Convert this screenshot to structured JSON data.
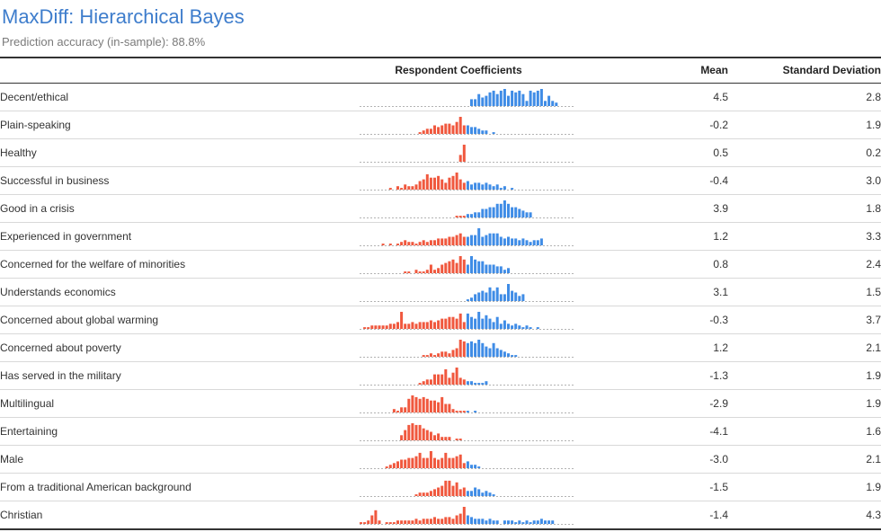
{
  "title": "MaxDiff: Hierarchical Bayes",
  "subtitle": "Prediction accuracy (in-sample): 88.8%",
  "columns": {
    "label": "",
    "coefficients": "Respondent Coefficients",
    "mean": "Mean",
    "sd": "Standard Deviation"
  },
  "colors": {
    "negative": "#f0583e",
    "positive": "#3f8ce6",
    "baseline": "#b3b3b3"
  },
  "chart_data": {
    "type": "table",
    "bins": 60,
    "rows": [
      {
        "label": "Decent/ethical",
        "mean": "4.5",
        "sd": "2.8",
        "hist": [
          0,
          0,
          0,
          0,
          0,
          0,
          0,
          0,
          0,
          0,
          0,
          0,
          0,
          0,
          0,
          0,
          0,
          0,
          0,
          0,
          0,
          0,
          0,
          0,
          0,
          0,
          0,
          0,
          0,
          0,
          0.4,
          0.4,
          0.7,
          0.5,
          0.6,
          0.8,
          0.9,
          0.7,
          0.9,
          1,
          0.6,
          0.9,
          0.8,
          0.9,
          0.7,
          0.3,
          0.9,
          0.8,
          0.9,
          1,
          0.3,
          0.6,
          0.3,
          0.2,
          0,
          0,
          0,
          0,
          0,
          0
        ]
      },
      {
        "label": "Plain-speaking",
        "mean": "-0.2",
        "sd": "1.9",
        "hist": [
          0,
          0,
          0,
          0,
          0,
          0,
          0,
          0,
          0,
          0,
          0,
          0,
          0,
          0,
          0,
          0,
          0.1,
          0.2,
          0.3,
          0.3,
          0.5,
          0.4,
          0.5,
          0.6,
          0.6,
          0.5,
          0.7,
          1,
          0.5,
          0.5,
          0.4,
          0.4,
          0.3,
          0.2,
          0.2,
          0,
          0.1,
          0,
          0,
          0,
          0,
          0,
          0,
          0,
          0,
          0,
          0,
          0,
          0,
          0,
          0,
          0,
          0,
          0,
          0,
          0,
          0,
          0,
          0,
          0
        ]
      },
      {
        "label": "Healthy",
        "mean": "0.5",
        "sd": "0.2",
        "hist": [
          0,
          0,
          0,
          0,
          0,
          0,
          0,
          0,
          0,
          0,
          0,
          0,
          0,
          0,
          0,
          0,
          0,
          0,
          0,
          0,
          0,
          0,
          0,
          0,
          0,
          0,
          0,
          0.4,
          1,
          0,
          0,
          0,
          0,
          0,
          0,
          0,
          0,
          0,
          0,
          0,
          0,
          0,
          0,
          0,
          0,
          0,
          0,
          0,
          0,
          0,
          0,
          0,
          0,
          0,
          0,
          0,
          0,
          0,
          0,
          0
        ]
      },
      {
        "label": "Successful in business",
        "mean": "-0.4",
        "sd": "3.0",
        "hist": [
          0,
          0,
          0,
          0,
          0,
          0,
          0,
          0,
          0.1,
          0,
          0.2,
          0.1,
          0.3,
          0.2,
          0.2,
          0.3,
          0.5,
          0.6,
          0.9,
          0.7,
          0.7,
          0.8,
          0.6,
          0.4,
          0.7,
          0.8,
          1,
          0.6,
          0.4,
          0.5,
          0.3,
          0.4,
          0.4,
          0.3,
          0.4,
          0.3,
          0.2,
          0.3,
          0.1,
          0.2,
          0,
          0.1,
          0,
          0,
          0,
          0,
          0,
          0,
          0,
          0,
          0,
          0,
          0,
          0,
          0,
          0,
          0,
          0,
          0,
          0
        ]
      },
      {
        "label": "Good in a crisis",
        "mean": "3.9",
        "sd": "1.8",
        "hist": [
          0,
          0,
          0,
          0,
          0,
          0,
          0,
          0,
          0,
          0,
          0,
          0,
          0,
          0,
          0,
          0,
          0,
          0,
          0,
          0,
          0,
          0,
          0,
          0,
          0,
          0,
          0.1,
          0.1,
          0.1,
          0.2,
          0.2,
          0.3,
          0.3,
          0.5,
          0.5,
          0.6,
          0.6,
          0.8,
          0.8,
          1,
          0.8,
          0.6,
          0.6,
          0.5,
          0.4,
          0.3,
          0.3,
          0,
          0,
          0,
          0,
          0,
          0,
          0,
          0,
          0,
          0,
          0,
          0,
          0
        ]
      },
      {
        "label": "Experienced in government",
        "mean": "1.2",
        "sd": "3.3",
        "hist": [
          0,
          0,
          0,
          0,
          0,
          0,
          0.1,
          0,
          0.1,
          0,
          0.1,
          0.2,
          0.3,
          0.2,
          0.2,
          0.1,
          0.2,
          0.3,
          0.2,
          0.3,
          0.3,
          0.4,
          0.4,
          0.4,
          0.5,
          0.5,
          0.6,
          0.7,
          0.5,
          0.5,
          0.6,
          0.6,
          1,
          0.5,
          0.6,
          0.7,
          0.7,
          0.7,
          0.5,
          0.4,
          0.5,
          0.4,
          0.4,
          0.3,
          0.4,
          0.3,
          0.2,
          0.3,
          0.3,
          0.4,
          0,
          0,
          0,
          0,
          0,
          0,
          0,
          0,
          0,
          0
        ]
      },
      {
        "label": "Concerned for the welfare of minorities",
        "mean": "0.8",
        "sd": "2.4",
        "hist": [
          0,
          0,
          0,
          0,
          0,
          0,
          0,
          0,
          0,
          0,
          0,
          0,
          0.1,
          0.1,
          0,
          0.2,
          0.1,
          0.1,
          0.2,
          0.5,
          0.2,
          0.3,
          0.5,
          0.6,
          0.7,
          0.8,
          0.6,
          1,
          0.8,
          0.5,
          1,
          0.8,
          0.7,
          0.7,
          0.5,
          0.5,
          0.5,
          0.4,
          0.4,
          0.2,
          0.3,
          0,
          0,
          0,
          0,
          0,
          0,
          0,
          0,
          0,
          0,
          0,
          0,
          0,
          0,
          0,
          0,
          0,
          0,
          0
        ]
      },
      {
        "label": "Understands economics",
        "mean": "3.1",
        "sd": "1.5",
        "hist": [
          0,
          0,
          0,
          0,
          0,
          0,
          0,
          0,
          0,
          0,
          0,
          0,
          0,
          0,
          0,
          0,
          0,
          0,
          0,
          0,
          0,
          0,
          0,
          0,
          0,
          0,
          0,
          0,
          0,
          0.1,
          0.2,
          0.4,
          0.5,
          0.6,
          0.5,
          0.8,
          0.6,
          0.8,
          0.4,
          0.4,
          1,
          0.6,
          0.5,
          0.3,
          0.4,
          0,
          0,
          0,
          0,
          0,
          0,
          0,
          0,
          0,
          0,
          0,
          0,
          0,
          0,
          0
        ]
      },
      {
        "label": "Concerned about global warming",
        "mean": "-0.3",
        "sd": "3.7",
        "hist": [
          0,
          0.1,
          0.1,
          0.2,
          0.2,
          0.2,
          0.2,
          0.2,
          0.3,
          0.3,
          0.4,
          1,
          0.3,
          0.3,
          0.4,
          0.3,
          0.4,
          0.4,
          0.4,
          0.5,
          0.4,
          0.5,
          0.6,
          0.6,
          0.7,
          0.7,
          0.6,
          0.9,
          0.4,
          0.9,
          0.7,
          0.6,
          1,
          0.6,
          0.8,
          0.6,
          0.4,
          0.7,
          0.3,
          0.5,
          0.3,
          0.2,
          0.3,
          0.2,
          0.1,
          0.2,
          0.1,
          0,
          0.1,
          0,
          0,
          0,
          0,
          0,
          0,
          0,
          0,
          0,
          0,
          0
        ]
      },
      {
        "label": "Concerned about poverty",
        "mean": "1.2",
        "sd": "2.1",
        "hist": [
          0,
          0,
          0,
          0,
          0,
          0,
          0,
          0,
          0,
          0,
          0,
          0,
          0,
          0,
          0,
          0,
          0,
          0.1,
          0.1,
          0.2,
          0.1,
          0.2,
          0.3,
          0.3,
          0.2,
          0.4,
          0.5,
          1,
          0.9,
          0.8,
          0.9,
          0.8,
          1,
          0.8,
          0.6,
          0.5,
          0.8,
          0.5,
          0.4,
          0.3,
          0.2,
          0.1,
          0.1,
          0,
          0,
          0,
          0,
          0,
          0,
          0,
          0,
          0,
          0,
          0,
          0,
          0,
          0,
          0,
          0,
          0
        ]
      },
      {
        "label": "Has served in the military",
        "mean": "-1.3",
        "sd": "1.9",
        "hist": [
          0,
          0,
          0,
          0,
          0,
          0,
          0,
          0,
          0,
          0,
          0,
          0,
          0,
          0,
          0,
          0,
          0.1,
          0.2,
          0.3,
          0.3,
          0.6,
          0.6,
          0.6,
          0.9,
          0.4,
          0.7,
          1,
          0.4,
          0.3,
          0.2,
          0.2,
          0.1,
          0.1,
          0.1,
          0.2,
          0,
          0,
          0,
          0,
          0,
          0,
          0,
          0,
          0,
          0,
          0,
          0,
          0,
          0,
          0,
          0,
          0,
          0,
          0,
          0,
          0,
          0,
          0,
          0,
          0
        ]
      },
      {
        "label": "Multilingual",
        "mean": "-2.9",
        "sd": "1.9",
        "hist": [
          0,
          0,
          0,
          0,
          0,
          0,
          0,
          0,
          0,
          0.2,
          0.1,
          0.3,
          0.3,
          0.8,
          1,
          0.9,
          0.8,
          0.9,
          0.8,
          0.7,
          0.7,
          0.6,
          0.9,
          0.5,
          0.5,
          0.2,
          0.1,
          0.1,
          0.1,
          0.1,
          0,
          0.1,
          0,
          0,
          0,
          0,
          0,
          0,
          0,
          0,
          0,
          0,
          0,
          0,
          0,
          0,
          0,
          0,
          0,
          0,
          0,
          0,
          0,
          0,
          0,
          0,
          0,
          0,
          0,
          0
        ]
      },
      {
        "label": "Entertaining",
        "mean": "-4.1",
        "sd": "1.6",
        "hist": [
          0,
          0,
          0,
          0,
          0,
          0,
          0,
          0,
          0,
          0,
          0,
          0.3,
          0.6,
          0.9,
          1,
          0.9,
          0.9,
          0.7,
          0.6,
          0.5,
          0.3,
          0.4,
          0.2,
          0.2,
          0.2,
          0,
          0.1,
          0.1,
          0,
          0,
          0,
          0,
          0,
          0,
          0,
          0,
          0,
          0,
          0,
          0,
          0,
          0,
          0,
          0,
          0,
          0,
          0,
          0,
          0,
          0,
          0,
          0,
          0,
          0,
          0,
          0,
          0,
          0,
          0,
          0
        ]
      },
      {
        "label": "Male",
        "mean": "-3.0",
        "sd": "2.1",
        "hist": [
          0,
          0,
          0,
          0,
          0,
          0,
          0,
          0.1,
          0.2,
          0.3,
          0.4,
          0.5,
          0.5,
          0.6,
          0.6,
          0.7,
          0.9,
          0.6,
          0.6,
          1,
          0.6,
          0.5,
          0.6,
          0.9,
          0.6,
          0.6,
          0.7,
          0.8,
          0.3,
          0.4,
          0.2,
          0.2,
          0.1,
          0,
          0,
          0,
          0,
          0,
          0,
          0,
          0,
          0,
          0,
          0,
          0,
          0,
          0,
          0,
          0,
          0,
          0,
          0,
          0,
          0,
          0,
          0,
          0,
          0,
          0,
          0
        ]
      },
      {
        "label": "From a traditional American background",
        "mean": "-1.5",
        "sd": "1.9",
        "hist": [
          0,
          0,
          0,
          0,
          0,
          0,
          0,
          0,
          0,
          0,
          0,
          0,
          0,
          0,
          0,
          0.1,
          0.2,
          0.2,
          0.2,
          0.3,
          0.4,
          0.5,
          0.6,
          0.9,
          0.9,
          0.6,
          0.8,
          0.4,
          0.5,
          0.3,
          0.3,
          0.5,
          0.4,
          0.2,
          0.3,
          0.2,
          0.1,
          0,
          0,
          0,
          0,
          0,
          0,
          0,
          0,
          0,
          0,
          0,
          0,
          0,
          0,
          0,
          0,
          0,
          0,
          0,
          0,
          0,
          0,
          0
        ]
      },
      {
        "label": "Christian",
        "mean": "-1.4",
        "sd": "4.3",
        "hist": [
          0.1,
          0.1,
          0.2,
          0.5,
          0.8,
          0.2,
          0,
          0.1,
          0.1,
          0.1,
          0.2,
          0.2,
          0.2,
          0.2,
          0.2,
          0.3,
          0.2,
          0.3,
          0.3,
          0.3,
          0.4,
          0.3,
          0.3,
          0.4,
          0.4,
          0.3,
          0.5,
          0.6,
          1,
          0.5,
          0.4,
          0.3,
          0.3,
          0.3,
          0.2,
          0.3,
          0.2,
          0.2,
          0,
          0.2,
          0.2,
          0.2,
          0.1,
          0.2,
          0.1,
          0.2,
          0.1,
          0.2,
          0.2,
          0.3,
          0.2,
          0.2,
          0.2,
          0,
          0,
          0,
          0,
          0,
          0,
          0
        ]
      }
    ]
  }
}
